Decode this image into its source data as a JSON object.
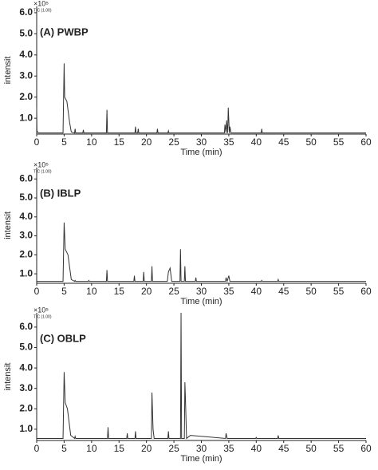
{
  "chart_data": [
    {
      "type": "line",
      "title": "(A) PWBP",
      "y_multiplier": "×10⁵",
      "scale_note": "TIC (1.00)",
      "ylabel": "intensit",
      "xlabel": "Time (min)",
      "color": "#333333",
      "xlim": [
        0,
        60
      ],
      "xticks": [
        0,
        5,
        10,
        15,
        20,
        25,
        30,
        35,
        40,
        45,
        50,
        55,
        60
      ],
      "ylim": [
        0.25,
        6.3
      ],
      "yticks": [
        {
          "value": 1,
          "label": "1.0"
        },
        {
          "value": 2,
          "label": "2.0"
        },
        {
          "value": 3,
          "label": "3.0"
        },
        {
          "value": 4,
          "label": "4.0"
        },
        {
          "value": 5,
          "label": "5.0"
        },
        {
          "value": 6,
          "label": "6.0"
        }
      ],
      "x": [
        0,
        0.05,
        0.3,
        4.8,
        5.0,
        5.1,
        5.5,
        6.0,
        6.3,
        6.9,
        7.0,
        7.1,
        8.4,
        8.5,
        8.6,
        12.7,
        12.8,
        12.9,
        17.9,
        18.0,
        18.1,
        18.4,
        18.5,
        18.6,
        21.9,
        22.0,
        22.1,
        23.9,
        24.0,
        24.1,
        34.2,
        34.3,
        34.5,
        34.6,
        34.8,
        34.9,
        35.1,
        35.2,
        35.4,
        40.9,
        41.0,
        41.1,
        60
      ],
      "values": [
        1.5,
        0.4,
        0.3,
        0.3,
        3.6,
        2.0,
        1.8,
        0.8,
        0.35,
        0.3,
        0.5,
        0.3,
        0.3,
        0.45,
        0.3,
        0.3,
        1.4,
        0.3,
        0.3,
        0.6,
        0.3,
        0.3,
        0.5,
        0.3,
        0.3,
        0.5,
        0.3,
        0.3,
        0.4,
        0.3,
        0.3,
        0.7,
        0.3,
        0.9,
        0.3,
        1.5,
        0.3,
        0.6,
        0.3,
        0.3,
        0.5,
        0.3,
        0.3
      ]
    },
    {
      "type": "line",
      "title": "(B) IBLP",
      "y_multiplier": "×10⁵",
      "scale_note": "TIC (1.00)",
      "ylabel": "intensit",
      "xlabel": "Time (min)",
      "color": "#333333",
      "xlim": [
        0,
        60
      ],
      "xticks": [
        0,
        5,
        10,
        15,
        20,
        25,
        30,
        35,
        40,
        45,
        50,
        55,
        60
      ],
      "ylim": [
        0.5,
        6.6
      ],
      "yticks": [
        {
          "value": 1,
          "label": "1.0"
        },
        {
          "value": 2,
          "label": "2.0"
        },
        {
          "value": 3,
          "label": "3.0"
        },
        {
          "value": 4,
          "label": "4.0"
        },
        {
          "value": 5,
          "label": "5.0"
        },
        {
          "value": 6,
          "label": "6.0"
        }
      ],
      "x": [
        0,
        4.8,
        5.0,
        5.2,
        5.7,
        6.3,
        6.9,
        7.0,
        7.1,
        9.4,
        9.5,
        9.6,
        12.7,
        12.8,
        12.9,
        17.7,
        17.8,
        17.9,
        19.4,
        19.5,
        19.6,
        20.9,
        21.0,
        21.1,
        23.8,
        24.0,
        24.3,
        24.6,
        26.1,
        26.2,
        26.3,
        26.9,
        27.0,
        27.1,
        28.9,
        29.0,
        29.1,
        34.4,
        34.5,
        34.7,
        35.0,
        35.2,
        40.9,
        41.0,
        41.1,
        43.9,
        44.0,
        44.1,
        60
      ],
      "values": [
        0.6,
        0.6,
        3.7,
        2.3,
        2.0,
        0.7,
        0.6,
        0.65,
        0.6,
        0.6,
        0.65,
        0.6,
        0.6,
        1.2,
        0.6,
        0.6,
        0.9,
        0.6,
        0.6,
        1.1,
        0.6,
        0.6,
        1.4,
        0.6,
        0.6,
        1.1,
        1.3,
        0.6,
        0.6,
        2.3,
        0.6,
        0.6,
        1.4,
        0.6,
        0.6,
        0.8,
        0.6,
        0.6,
        0.8,
        0.6,
        0.9,
        0.6,
        0.6,
        0.65,
        0.6,
        0.6,
        0.7,
        0.6,
        0.6
      ]
    },
    {
      "type": "line",
      "title": "(C) OBLP",
      "y_multiplier": "×10⁵",
      "scale_note": "TIC (1.00)",
      "ylabel": "intensit",
      "xlabel": "Time (min)",
      "color": "#333333",
      "xlim": [
        0,
        60
      ],
      "xticks": [
        0,
        5,
        10,
        15,
        20,
        25,
        30,
        35,
        40,
        45,
        50,
        55,
        60
      ],
      "ylim": [
        0.45,
        6.7
      ],
      "yticks": [
        {
          "value": 1,
          "label": "1.0"
        },
        {
          "value": 2,
          "label": "2.0"
        },
        {
          "value": 3,
          "label": "3.0"
        },
        {
          "value": 4,
          "label": "4.0"
        },
        {
          "value": 5,
          "label": "5.0"
        },
        {
          "value": 6,
          "label": "6.0"
        }
      ],
      "x": [
        0,
        4.8,
        5.0,
        5.2,
        5.6,
        6.2,
        6.9,
        7.0,
        7.1,
        12.9,
        13.0,
        13.1,
        16.4,
        16.5,
        16.6,
        17.9,
        18.0,
        18.1,
        20.9,
        21.0,
        21.2,
        21.4,
        23.9,
        24.0,
        24.1,
        26.2,
        26.3,
        26.4,
        26.9,
        27.0,
        27.1,
        27.3,
        28.0,
        34.4,
        34.5,
        34.7,
        39.9,
        40.0,
        40.1,
        43.9,
        44.0,
        44.1,
        60
      ],
      "values": [
        0.55,
        0.55,
        3.8,
        2.3,
        2.0,
        0.7,
        0.55,
        0.65,
        0.55,
        0.55,
        1.1,
        0.55,
        0.55,
        0.8,
        0.55,
        0.55,
        0.9,
        0.55,
        0.55,
        2.8,
        1.0,
        0.55,
        0.55,
        0.9,
        0.55,
        0.55,
        6.7,
        0.55,
        0.55,
        3.3,
        2.5,
        0.55,
        0.7,
        0.55,
        0.8,
        0.55,
        0.55,
        0.6,
        0.55,
        0.55,
        0.7,
        0.55,
        0.55
      ]
    }
  ]
}
